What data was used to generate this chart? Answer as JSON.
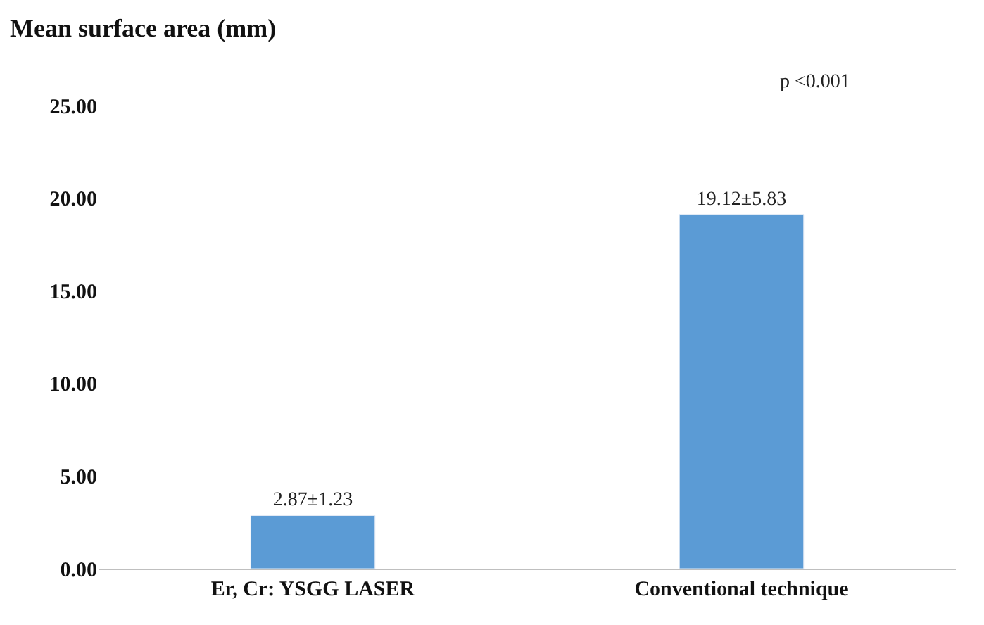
{
  "chart_data": {
    "type": "bar",
    "title": "Mean surface area (mm)",
    "categories": [
      "Er, Cr: YSGG LASER",
      "Conventional technique"
    ],
    "values": [
      2.87,
      19.12
    ],
    "value_labels": [
      "2.87±1.23",
      "19.12±5.83"
    ],
    "color": "#5b9bd5",
    "ylim": [
      0,
      25
    ],
    "yticks": [
      {
        "value": 0,
        "label": "0.00"
      },
      {
        "value": 5,
        "label": "5.00"
      },
      {
        "value": 10,
        "label": "10.00"
      },
      {
        "value": 15,
        "label": "15.00"
      },
      {
        "value": 20,
        "label": "20.00"
      },
      {
        "value": 25,
        "label": "25.00"
      }
    ],
    "annotations": [
      "p <0.001"
    ]
  }
}
